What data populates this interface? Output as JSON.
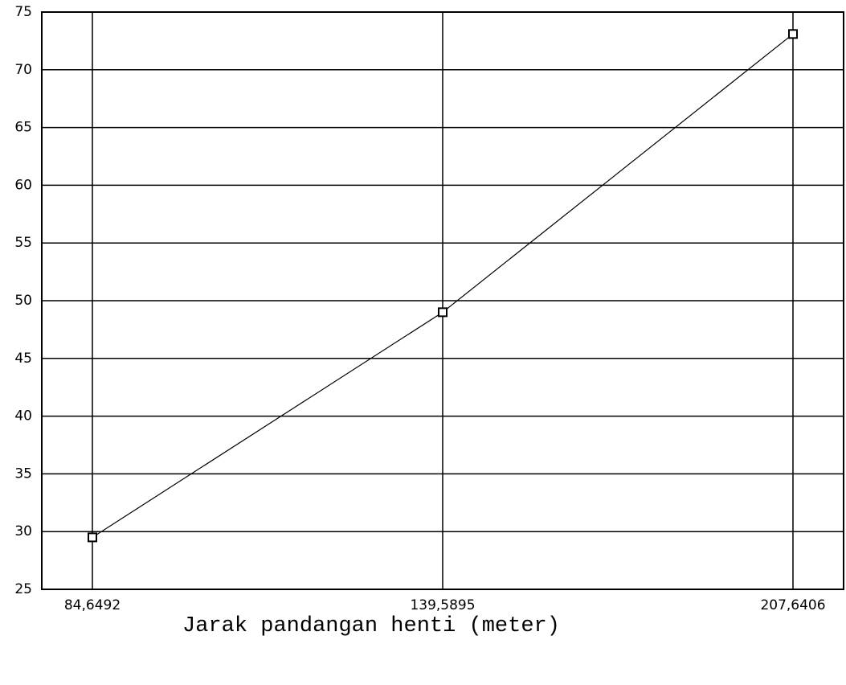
{
  "chart_data": {
    "type": "line",
    "x_label": "Jarak pandangan henti (meter)",
    "categories": [
      "84,6492",
      "139,5895",
      "207,6406"
    ],
    "series": [
      {
        "name": null,
        "color": "#000000",
        "values": [
          29.5,
          49,
          73.1
        ]
      }
    ],
    "ylim": [
      25,
      75
    ],
    "yticks": [
      25,
      30,
      35,
      40,
      45,
      50,
      55,
      60,
      65,
      70,
      75
    ],
    "grid": true
  }
}
